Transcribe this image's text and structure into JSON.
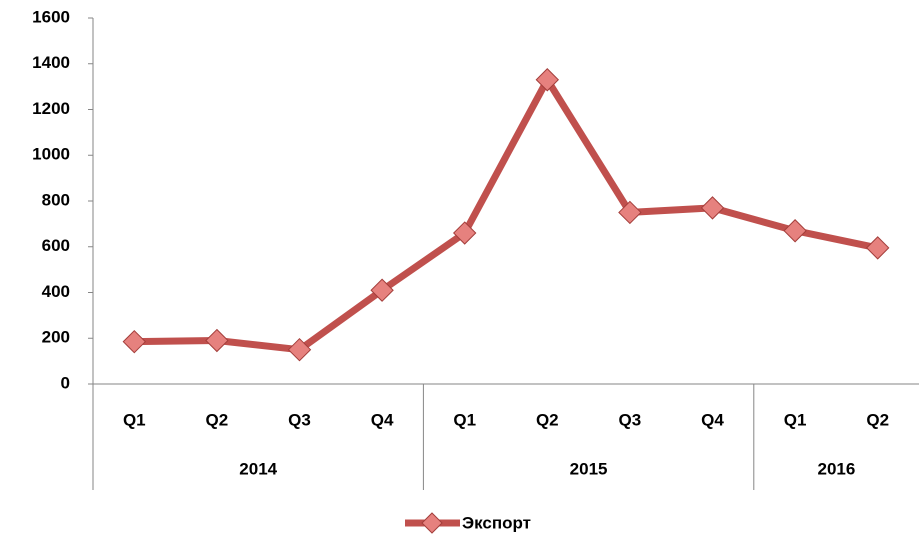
{
  "chart_data": {
    "type": "line",
    "category_groups": [
      {
        "name": "2014",
        "categories": [
          "Q1",
          "Q2",
          "Q3",
          "Q4"
        ]
      },
      {
        "name": "2015",
        "categories": [
          "Q1",
          "Q2",
          "Q3",
          "Q4"
        ]
      },
      {
        "name": "2016",
        "categories": [
          "Q1",
          "Q2"
        ]
      }
    ],
    "series": [
      {
        "name": "Экспорт",
        "color": "#c0504d",
        "values": [
          185,
          190,
          150,
          410,
          660,
          1330,
          750,
          770,
          670,
          595
        ]
      }
    ],
    "ylim": [
      0,
      1600
    ],
    "yticks": [
      0,
      200,
      400,
      600,
      800,
      1000,
      1200,
      1400,
      1600
    ],
    "grid": false,
    "legend": "bottom"
  }
}
